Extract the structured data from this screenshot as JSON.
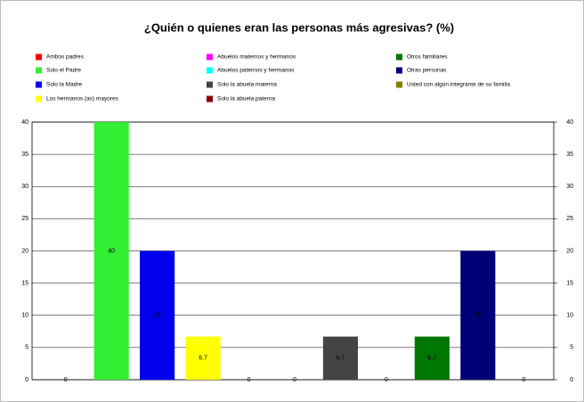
{
  "chart_data": {
    "type": "bar",
    "title": "¿Quién o quienes eran las personas más agresivas? (%)",
    "categories": [
      "Ambos padres",
      "Solo el Padre",
      "Solo la Madre",
      "Los hermanos (as) mayores",
      "Abuelos maternos y hermanos",
      "Abuelos paternos y hermanos",
      "Solo la abuela materna",
      "Solo la abuela paterna",
      "Otros familiares",
      "Otras personas",
      "Usted con algún integrante de su familia"
    ],
    "values": [
      0,
      40,
      20,
      6.7,
      0,
      0,
      6.7,
      0,
      6.7,
      20,
      0
    ],
    "colors": [
      "#ff0000",
      "#33ee33",
      "#0000ee",
      "#ffff00",
      "#ff00ff",
      "#00ffff",
      "#444444",
      "#880000",
      "#007700",
      "#000077",
      "#808000"
    ],
    "ylim": [
      0,
      40
    ],
    "yticks": [
      0,
      5,
      10,
      15,
      20,
      25,
      30,
      35,
      40
    ],
    "y2lim": [
      0,
      40
    ],
    "y2ticks": [
      0,
      5,
      10,
      15,
      20,
      25,
      30,
      35,
      40
    ],
    "grid": true
  }
}
